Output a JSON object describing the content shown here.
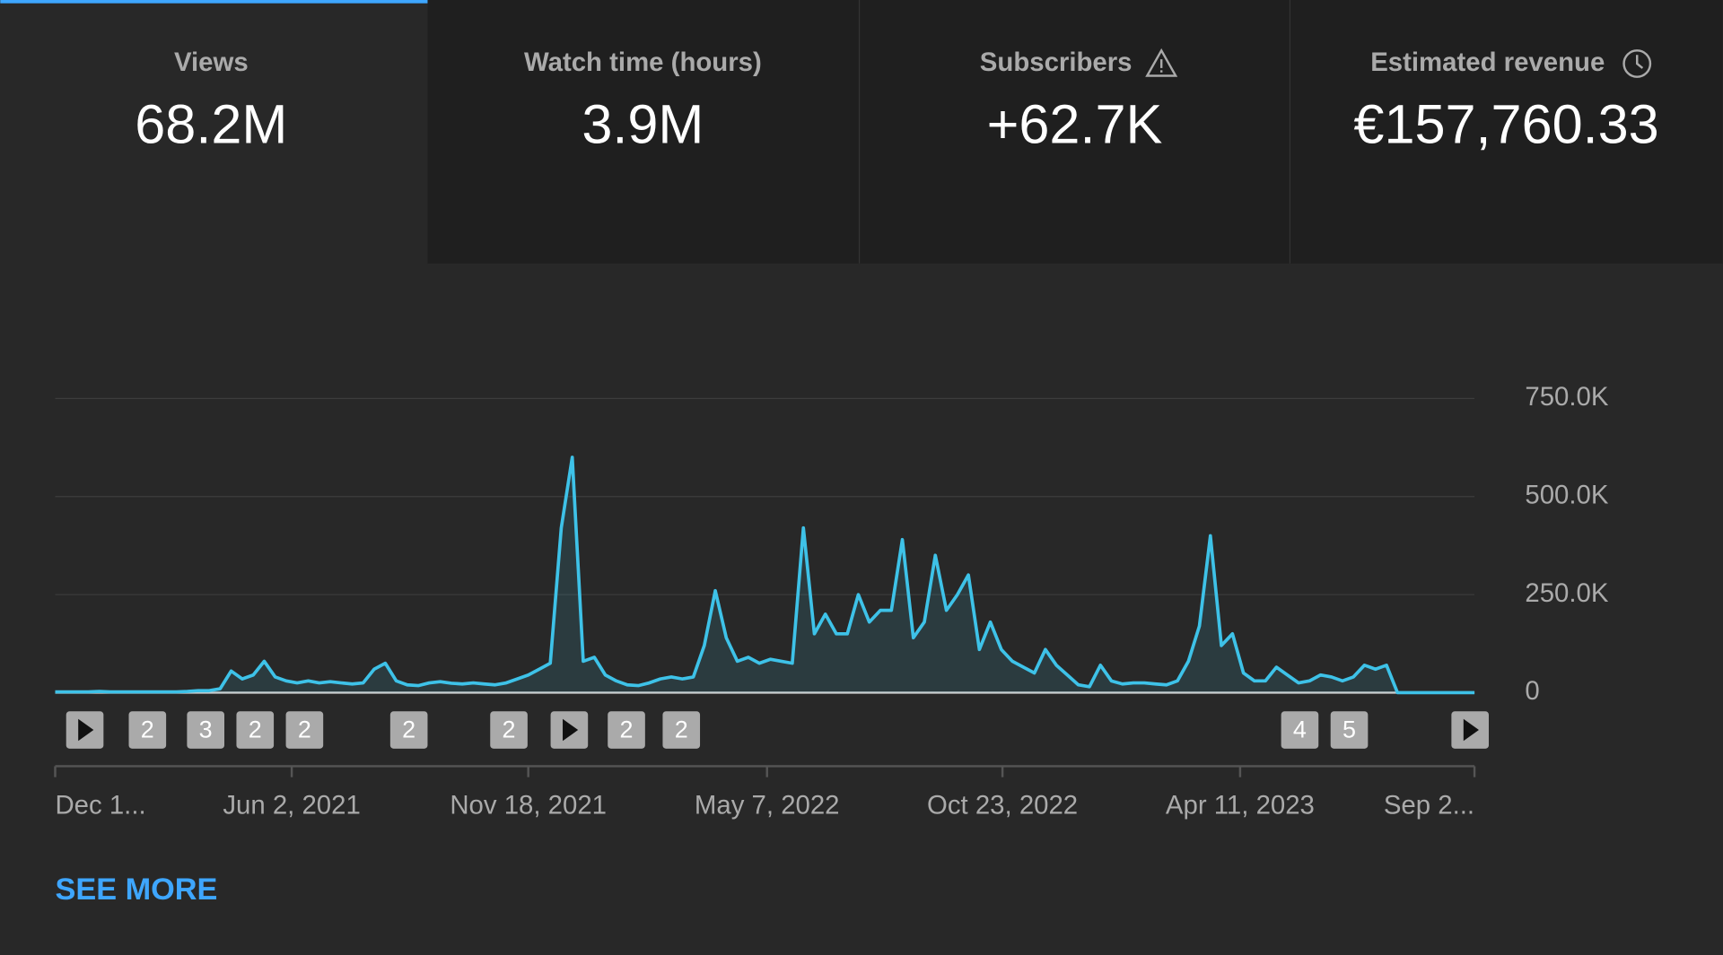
{
  "tabs": [
    {
      "label": "Views",
      "value": "68.2M"
    },
    {
      "label": "Watch time (hours)",
      "value": "3.9M"
    },
    {
      "label": "Subscribers",
      "value": "+62.7K"
    },
    {
      "label": "Estimated revenue",
      "value": "€157,760.33"
    }
  ],
  "chart_data": {
    "type": "line",
    "color": "#3ec2e8",
    "values": [
      2000,
      2000,
      2000,
      2000,
      3000,
      2000,
      2000,
      2000,
      2000,
      2000,
      2000,
      2000,
      3000,
      5000,
      5000,
      10000,
      55000,
      35000,
      45000,
      80000,
      40000,
      30000,
      25000,
      30000,
      25000,
      28000,
      25000,
      22000,
      25000,
      60000,
      75000,
      30000,
      20000,
      18000,
      25000,
      28000,
      24000,
      22000,
      25000,
      22000,
      20000,
      25000,
      35000,
      45000,
      60000,
      75000,
      420000,
      600000,
      80000,
      90000,
      45000,
      30000,
      20000,
      18000,
      25000,
      35000,
      40000,
      35000,
      40000,
      120000,
      260000,
      140000,
      80000,
      90000,
      75000,
      85000,
      80000,
      75000,
      420000,
      150000,
      200000,
      150000,
      150000,
      250000,
      180000,
      210000,
      210000,
      390000,
      140000,
      180000,
      350000,
      210000,
      250000,
      300000,
      110000,
      180000,
      110000,
      80000,
      65000,
      50000,
      110000,
      70000,
      45000,
      20000,
      15000,
      70000,
      30000,
      22000,
      25000,
      25000,
      22000,
      20000,
      30000,
      80000,
      170000,
      400000,
      120000,
      150000,
      50000,
      30000,
      30000,
      65000,
      45000,
      25000,
      30000,
      45000,
      40000,
      30000,
      40000,
      70000,
      60000,
      70000,
      0,
      0,
      0,
      0,
      0,
      0,
      0,
      0
    ],
    "xlim": [
      0,
      129
    ],
    "xticks": [
      {
        "value": 0,
        "label": "Dec 1..."
      },
      {
        "value": 21.5,
        "label": "Jun 2, 2021"
      },
      {
        "value": 43,
        "label": "Nov 18, 2021"
      },
      {
        "value": 64.7,
        "label": "May 7, 2022"
      },
      {
        "value": 86.1,
        "label": "Oct 23, 2022"
      },
      {
        "value": 107.7,
        "label": "Apr 11, 2023"
      },
      {
        "value": 129,
        "label": "Sep 2..."
      }
    ],
    "ylim": [
      0,
      750000
    ],
    "yticks": [
      0,
      {
        "value": 250000,
        "label": "250.0K"
      },
      {
        "value": 500000,
        "label": "500.0K"
      },
      {
        "value": 750000,
        "label": "750.0K"
      }
    ],
    "grid": true
  },
  "markers": [
    "2",
    "3",
    "2",
    "2",
    "2",
    "2",
    "2",
    "2",
    "4",
    "5"
  ],
  "see_more": "SEE MORE"
}
